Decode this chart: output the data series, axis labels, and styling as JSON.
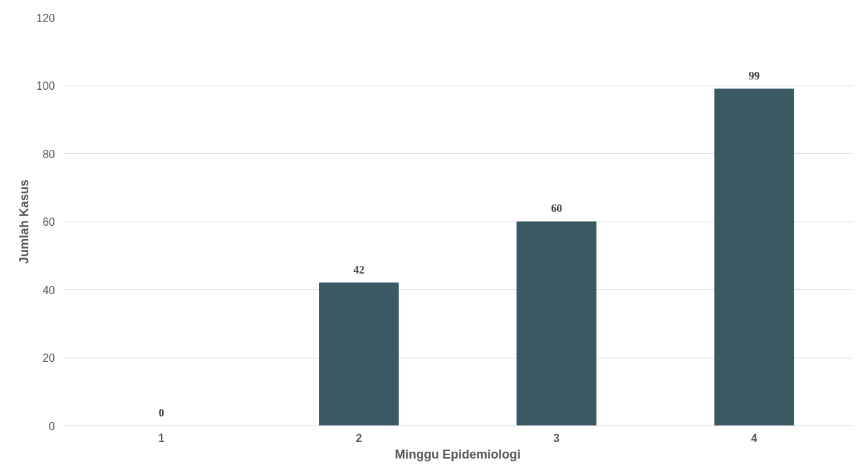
{
  "chart_data": {
    "type": "bar",
    "xlabel": "Minggu Epidemiologi",
    "ylabel": "Jumlah Kasus",
    "categories": [
      "1",
      "2",
      "3",
      "4"
    ],
    "values": [
      0,
      42,
      60,
      99
    ],
    "color": "#3a5a63",
    "ylim": [
      0,
      120
    ],
    "yticks": [
      0,
      20,
      40,
      60,
      80,
      100,
      120
    ],
    "grid": "y",
    "data_labels": true
  }
}
